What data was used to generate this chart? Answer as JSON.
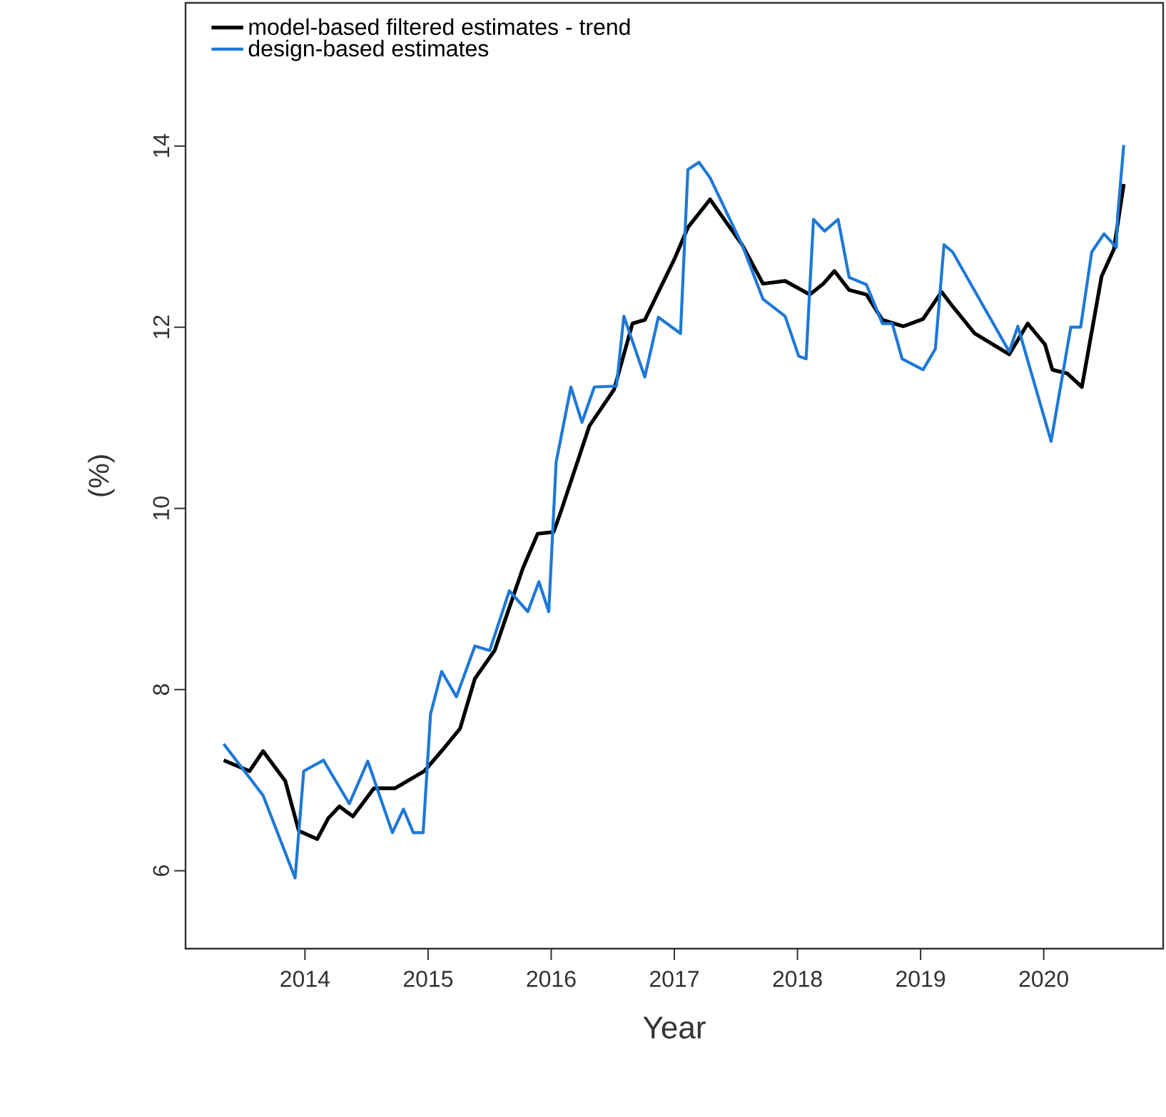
{
  "chart_data": {
    "type": "line",
    "xlabel": "Year",
    "ylabel": "(%)",
    "xlim": [
      2013.03,
      2020.97
    ],
    "ylim": [
      5.14,
      15.58
    ],
    "xticks": [
      2014,
      2015,
      2016,
      2017,
      2018,
      2019,
      2020
    ],
    "yticks": [
      6,
      8,
      10,
      12,
      14
    ],
    "legend": "top left",
    "series": [
      {
        "name": "model-based filtered estimates - trend",
        "color": "#000000",
        "x": [
          2013.34,
          2013.55,
          2013.66,
          2013.84,
          2013.95,
          2014.1,
          2014.19,
          2014.28,
          2014.39,
          2014.56,
          2014.73,
          2014.97,
          2015.14,
          2015.26,
          2015.38,
          2015.54,
          2015.77,
          2015.89,
          2016.02,
          2016.08,
          2016.31,
          2016.51,
          2016.66,
          2016.76,
          2017.0,
          2017.11,
          2017.29,
          2017.55,
          2017.72,
          2017.9,
          2018.1,
          2018.21,
          2018.3,
          2018.42,
          2018.56,
          2018.69,
          2018.86,
          2019.02,
          2019.17,
          2019.26,
          2019.44,
          2019.72,
          2019.87,
          2020.01,
          2020.07,
          2020.19,
          2020.31,
          2020.47,
          2020.57,
          2020.65
        ],
        "values": [
          7.22,
          7.1,
          7.32,
          6.99,
          6.44,
          6.35,
          6.58,
          6.71,
          6.6,
          6.91,
          6.91,
          7.1,
          7.37,
          7.57,
          8.12,
          8.43,
          9.34,
          9.72,
          9.74,
          9.97,
          10.91,
          11.31,
          12.04,
          12.08,
          12.75,
          13.1,
          13.41,
          12.91,
          12.48,
          12.51,
          12.36,
          12.48,
          12.62,
          12.41,
          12.36,
          12.08,
          12.01,
          12.09,
          12.39,
          12.23,
          11.93,
          11.7,
          12.04,
          11.81,
          11.53,
          11.49,
          11.34,
          12.56,
          12.86,
          13.58
        ]
      },
      {
        "name": "design-based estimates",
        "color": "#1e78d6",
        "x": [
          2013.34,
          2013.66,
          2013.92,
          2013.99,
          2014.15,
          2014.36,
          2014.51,
          2014.71,
          2014.8,
          2014.88,
          2014.96,
          2015.02,
          2015.11,
          2015.23,
          2015.38,
          2015.5,
          2015.66,
          2015.81,
          2015.9,
          2015.98,
          2016.04,
          2016.16,
          2016.25,
          2016.35,
          2016.53,
          2016.59,
          2016.76,
          2016.87,
          2017.05,
          2017.11,
          2017.2,
          2017.29,
          2017.55,
          2017.72,
          2017.9,
          2018.01,
          2018.07,
          2018.13,
          2018.22,
          2018.33,
          2018.42,
          2018.56,
          2018.69,
          2018.77,
          2018.85,
          2019.02,
          2019.12,
          2019.19,
          2019.26,
          2019.72,
          2019.79,
          2020.06,
          2020.22,
          2020.3,
          2020.39,
          2020.49,
          2020.59,
          2020.6,
          2020.65
        ],
        "values": [
          7.4,
          6.83,
          5.92,
          7.1,
          7.22,
          6.74,
          7.21,
          6.42,
          6.68,
          6.42,
          6.42,
          7.73,
          8.2,
          7.92,
          8.48,
          8.43,
          9.09,
          8.86,
          9.19,
          8.86,
          10.51,
          11.34,
          10.95,
          11.34,
          11.35,
          12.12,
          11.45,
          12.11,
          11.93,
          13.74,
          13.82,
          13.65,
          12.91,
          12.31,
          12.12,
          11.68,
          11.65,
          13.19,
          13.06,
          13.19,
          12.55,
          12.47,
          12.04,
          12.04,
          11.65,
          11.53,
          11.76,
          12.91,
          12.83,
          11.73,
          12.01,
          10.74,
          12.0,
          12.0,
          12.83,
          13.03,
          12.88,
          13.22,
          14.01
        ]
      }
    ]
  }
}
